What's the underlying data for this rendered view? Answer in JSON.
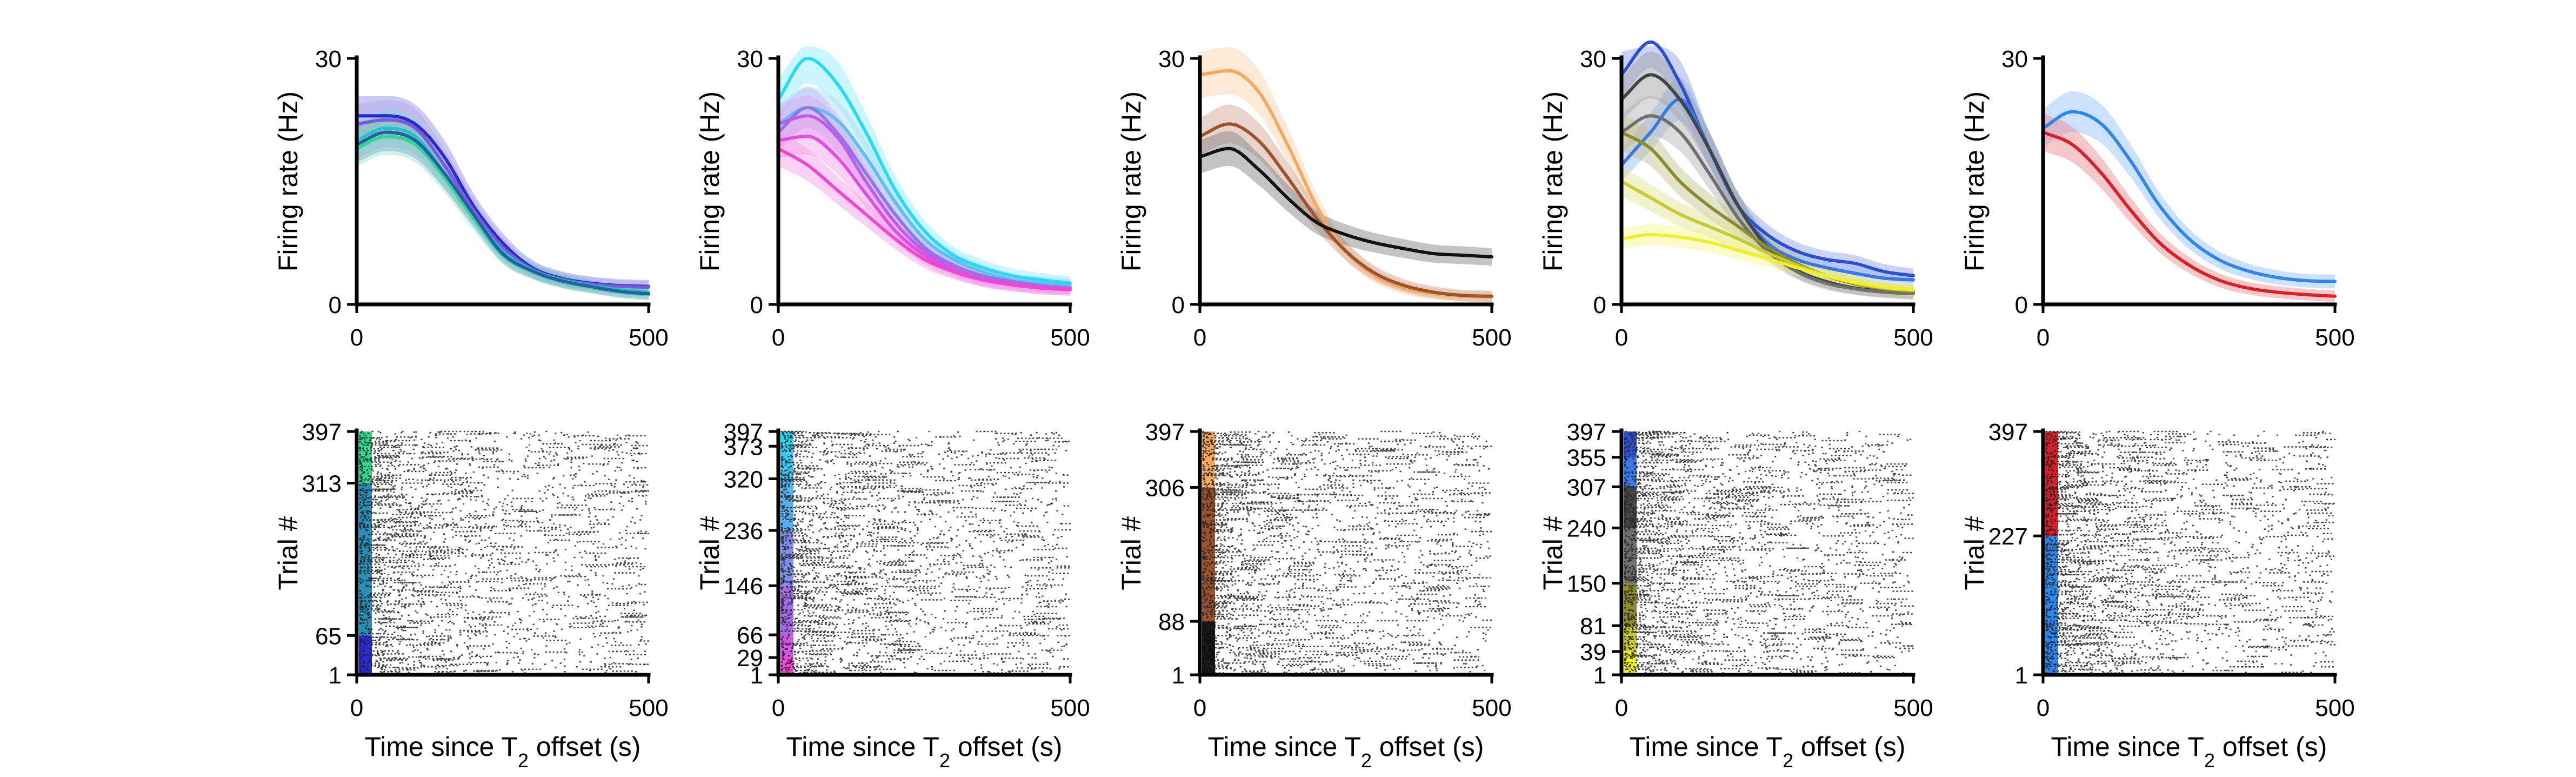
{
  "figure": {
    "background": "#ffffff",
    "layout": "2 rows x 5 columns; top row firing-rate curves, bottom row spike rasters"
  },
  "chart_data": [
    {
      "type": "line",
      "panel": "rate-1",
      "ylabel": "Firing rate (Hz)",
      "xlabel": "",
      "xlim": [
        0,
        500
      ],
      "ylim": [
        0,
        30
      ],
      "xticks": [
        "0",
        "500"
      ],
      "yticks": [
        "0",
        "30"
      ],
      "x": [
        0,
        50,
        100,
        150,
        200,
        250,
        300,
        350,
        400,
        450,
        500
      ],
      "series": [
        {
          "color": "#2b2bd6",
          "values": [
            23,
            23,
            22,
            18,
            12,
            7.5,
            4.5,
            3.2,
            2.6,
            2.3,
            2.2
          ]
        },
        {
          "color": "#7a5ad6",
          "values": [
            22,
            22.5,
            21.5,
            17,
            11.5,
            7,
            4.3,
            3.1,
            2.5,
            2.2,
            2.1
          ]
        },
        {
          "color": "#25c4c4",
          "values": [
            20,
            21.5,
            20.5,
            16,
            11,
            6.5,
            4.2,
            3,
            2.3,
            1.8,
            1.5
          ]
        },
        {
          "color": "#33d68f",
          "values": [
            19,
            20.5,
            19.5,
            15.5,
            10.5,
            6,
            4,
            2.8,
            2.1,
            1.5,
            1.2
          ]
        },
        {
          "color": "#245fa8",
          "values": [
            19.5,
            21,
            20,
            16,
            11,
            6.2,
            4.1,
            2.9,
            2.2,
            1.6,
            1.3
          ]
        }
      ]
    },
    {
      "type": "line",
      "panel": "rate-2",
      "ylabel": "Firing rate (Hz)",
      "xlabel": "",
      "xlim": [
        0,
        500
      ],
      "ylim": [
        0,
        30
      ],
      "xticks": [
        "0",
        "500"
      ],
      "yticks": [
        "0",
        "30"
      ],
      "x": [
        0,
        50,
        100,
        150,
        200,
        250,
        300,
        350,
        400,
        450,
        500
      ],
      "series": [
        {
          "color": "#2ad8f5",
          "values": [
            25,
            30,
            27,
            21,
            14,
            9,
            6,
            4.5,
            3.5,
            3,
            2.6
          ]
        },
        {
          "color": "#5fc0ee",
          "values": [
            22,
            24,
            22.5,
            18,
            12.5,
            8,
            5.5,
            4,
            3,
            2.6,
            2.3
          ]
        },
        {
          "color": "#8a7ae8",
          "values": [
            21,
            24,
            21,
            16,
            11,
            7,
            4.8,
            3.5,
            2.8,
            2.3,
            2
          ]
        },
        {
          "color": "#c25be6",
          "values": [
            22,
            23,
            20.5,
            15,
            10,
            6.5,
            4.5,
            3.2,
            2.6,
            2.2,
            2
          ]
        },
        {
          "color": "#e24de0",
          "values": [
            20,
            20.5,
            18,
            13.5,
            9,
            6,
            4.2,
            3,
            2.4,
            2,
            1.8
          ]
        },
        {
          "color": "#f046d0",
          "values": [
            19,
            17,
            14,
            11,
            8,
            5.5,
            4,
            3,
            2.4,
            2,
            1.8
          ]
        }
      ]
    },
    {
      "type": "line",
      "panel": "rate-3",
      "ylabel": "Firing rate (Hz)",
      "xlabel": "",
      "xlim": [
        0,
        500
      ],
      "ylim": [
        0,
        30
      ],
      "xticks": [
        "0",
        "500"
      ],
      "yticks": [
        "0",
        "30"
      ],
      "x": [
        0,
        50,
        100,
        150,
        200,
        250,
        300,
        350,
        400,
        450,
        500
      ],
      "series": [
        {
          "color": "#f5a85e",
          "values": [
            28,
            28.5,
            26,
            19.5,
            12,
            6.5,
            3.5,
            2,
            1.3,
            1,
            0.9
          ]
        },
        {
          "color": "#a0522d",
          "values": [
            20.5,
            22,
            20,
            15.5,
            10.5,
            6.5,
            3.8,
            2.3,
            1.5,
            1.1,
            1
          ]
        },
        {
          "color": "#111111",
          "values": [
            18,
            19,
            16.5,
            13,
            10,
            8.5,
            7.5,
            6.8,
            6.2,
            6,
            5.8
          ]
        }
      ]
    },
    {
      "type": "line",
      "panel": "rate-4",
      "ylabel": "Firing rate (Hz)",
      "xlabel": "",
      "xlim": [
        0,
        500
      ],
      "ylim": [
        0,
        30
      ],
      "xticks": [
        "0",
        "500"
      ],
      "yticks": [
        "0",
        "30"
      ],
      "x": [
        0,
        50,
        100,
        150,
        200,
        250,
        300,
        350,
        400,
        450,
        500
      ],
      "series": [
        {
          "color": "#2c4fd2",
          "values": [
            28,
            32,
            27,
            19,
            12,
            8.5,
            6.5,
            5.5,
            5,
            4,
            3.5
          ]
        },
        {
          "color": "#3a78e8",
          "values": [
            17,
            21,
            25,
            19,
            12,
            7.5,
            5.5,
            4.5,
            3.8,
            3.2,
            3
          ]
        },
        {
          "color": "#444444",
          "values": [
            25,
            28,
            25,
            19,
            12,
            7,
            4.2,
            2.8,
            2,
            1.6,
            1.4
          ]
        },
        {
          "color": "#6f6f6f",
          "values": [
            21,
            23,
            21,
            16,
            10.5,
            6.5,
            4,
            2.6,
            1.9,
            1.5,
            1.3
          ]
        },
        {
          "color": "#8c8c2c",
          "values": [
            21,
            19,
            15,
            12,
            9.5,
            7,
            5,
            3.5,
            2.5,
            1.9,
            1.6
          ]
        },
        {
          "color": "#c8c832",
          "values": [
            15,
            13,
            11,
            9.5,
            8,
            6.3,
            4.8,
            3.5,
            2.6,
            2,
            1.7
          ]
        },
        {
          "color": "#f0ef2b",
          "values": [
            8,
            8.5,
            8.2,
            7.6,
            6.6,
            5.6,
            4.5,
            3.5,
            2.7,
            2.1,
            1.8
          ]
        }
      ]
    },
    {
      "type": "line",
      "panel": "rate-5",
      "ylabel": "Firing rate (Hz)",
      "xlabel": "",
      "xlim": [
        0,
        500
      ],
      "ylim": [
        0,
        30
      ],
      "xticks": [
        "0",
        "500"
      ],
      "yticks": [
        "0",
        "30"
      ],
      "x": [
        0,
        50,
        100,
        150,
        200,
        250,
        300,
        350,
        400,
        450,
        500
      ],
      "series": [
        {
          "color": "#2f86f0",
          "values": [
            21.5,
            23.5,
            22,
            17.5,
            12,
            8,
            5.5,
            4.1,
            3.3,
            2.9,
            2.8
          ]
        },
        {
          "color": "#d8202a",
          "values": [
            21,
            19.5,
            16,
            11.5,
            7.5,
            4.8,
            3,
            2,
            1.5,
            1.2,
            1
          ]
        }
      ]
    },
    {
      "type": "scatter",
      "panel": "raster-1",
      "ylabel": "Trial #",
      "xlabel": "Time since T2 offset (s)",
      "xlim": [
        0,
        500
      ],
      "ylim": [
        1,
        397
      ],
      "xticks": [
        "0",
        "500"
      ],
      "yticks": [
        "1",
        "65",
        "313",
        "397"
      ],
      "condition_blocks": [
        {
          "from": 1,
          "to": 65,
          "color": "#2b2bd6"
        },
        {
          "from": 65,
          "to": 313,
          "color": "#2a8fb8"
        },
        {
          "from": 313,
          "to": 397,
          "color": "#33d68f"
        }
      ]
    },
    {
      "type": "scatter",
      "panel": "raster-2",
      "ylabel": "Trial #",
      "xlabel": "Time since T2 offset (s)",
      "xlim": [
        0,
        500
      ],
      "ylim": [
        1,
        397
      ],
      "xticks": [
        "0",
        "500"
      ],
      "yticks": [
        "1",
        "29",
        "66",
        "146",
        "236",
        "320",
        "373",
        "397"
      ],
      "condition_blocks": [
        {
          "from": 1,
          "to": 29,
          "color": "#f046d0"
        },
        {
          "from": 29,
          "to": 66,
          "color": "#d256e4"
        },
        {
          "from": 66,
          "to": 146,
          "color": "#a46ae8"
        },
        {
          "from": 146,
          "to": 236,
          "color": "#7f8ee8"
        },
        {
          "from": 236,
          "to": 320,
          "color": "#58b0ee"
        },
        {
          "from": 320,
          "to": 373,
          "color": "#3cc8f2"
        },
        {
          "from": 373,
          "to": 397,
          "color": "#2ad8f5"
        }
      ]
    },
    {
      "type": "scatter",
      "panel": "raster-3",
      "ylabel": "Trial #",
      "xlabel": "Time since T2 offset (s)",
      "xlim": [
        0,
        500
      ],
      "ylim": [
        1,
        397
      ],
      "xticks": [
        "0",
        "500"
      ],
      "yticks": [
        "1",
        "88",
        "306",
        "397"
      ],
      "condition_blocks": [
        {
          "from": 1,
          "to": 88,
          "color": "#111111"
        },
        {
          "from": 88,
          "to": 306,
          "color": "#a0522d"
        },
        {
          "from": 306,
          "to": 397,
          "color": "#f5a85e"
        }
      ]
    },
    {
      "type": "scatter",
      "panel": "raster-4",
      "ylabel": "Trial #",
      "xlabel": "Time since T2 offset (s)",
      "xlim": [
        0,
        500
      ],
      "ylim": [
        1,
        397
      ],
      "xticks": [
        "0",
        "500"
      ],
      "yticks": [
        "1",
        "39",
        "81",
        "150",
        "240",
        "307",
        "355",
        "397"
      ],
      "condition_blocks": [
        {
          "from": 1,
          "to": 39,
          "color": "#f0ef2b"
        },
        {
          "from": 39,
          "to": 81,
          "color": "#c8c832"
        },
        {
          "from": 81,
          "to": 150,
          "color": "#8c8c2c"
        },
        {
          "from": 150,
          "to": 240,
          "color": "#6f6f6f"
        },
        {
          "from": 240,
          "to": 307,
          "color": "#444444"
        },
        {
          "from": 307,
          "to": 355,
          "color": "#3a78e8"
        },
        {
          "from": 355,
          "to": 397,
          "color": "#2c4fd2"
        }
      ]
    },
    {
      "type": "scatter",
      "panel": "raster-5",
      "ylabel": "Trial #",
      "xlabel": "Time since T2 offset (s)",
      "xlim": [
        0,
        500
      ],
      "ylim": [
        1,
        397
      ],
      "xticks": [
        "0",
        "500"
      ],
      "yticks": [
        "1",
        "227",
        "397"
      ],
      "condition_blocks": [
        {
          "from": 1,
          "to": 227,
          "color": "#2f86f0"
        },
        {
          "from": 227,
          "to": 397,
          "color": "#d8202a"
        }
      ]
    }
  ]
}
